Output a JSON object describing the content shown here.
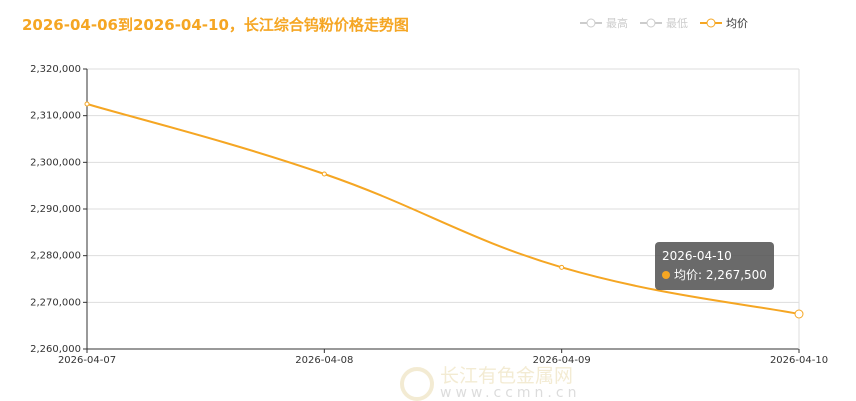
{
  "title": "2026-04-06到2026-04-10，长江综合钨粉价格走势图",
  "legend": [
    {
      "name": "最高",
      "active": false
    },
    {
      "name": "最低",
      "active": false
    },
    {
      "name": "均价",
      "active": true
    }
  ],
  "tooltip": {
    "date": "2026-04-10",
    "label": "均价: 2,267,500"
  },
  "watermark": {
    "name": "长江有色金属网",
    "url": "www.ccmn.cn"
  },
  "colors": {
    "series": "#f5a623",
    "inactive": "#cccccc"
  },
  "chart_data": {
    "type": "line",
    "title": "2026-04-06到2026-04-10，长江综合钨粉价格走势图",
    "categories": [
      "2026-04-07",
      "2026-04-08",
      "2026-04-09",
      "2026-04-10"
    ],
    "series": [
      {
        "name": "均价",
        "values": [
          2312500,
          2297500,
          2277500,
          2267500
        ]
      }
    ],
    "ylim": [
      2260000,
      2320000
    ],
    "yticks": [
      "2,260,000",
      "2,270,000",
      "2,280,000",
      "2,290,000",
      "2,300,000",
      "2,310,000",
      "2,320,000"
    ],
    "grid": true,
    "legend": "top-right"
  }
}
